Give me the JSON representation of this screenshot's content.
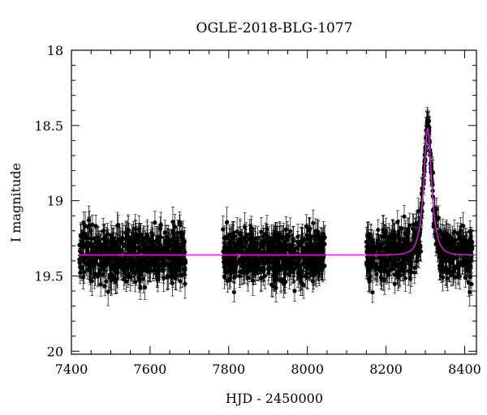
{
  "chart_data": {
    "type": "scatter",
    "title": "OGLE-2018-BLG-1077",
    "xlabel": "HJD - 2450000",
    "ylabel": "I magnitude",
    "xlim": [
      7400,
      8430
    ],
    "ylim": [
      18.0,
      20.02
    ],
    "y_inverted": true,
    "grid": false,
    "x_ticks": [
      7400,
      7600,
      7800,
      8000,
      8200,
      8400
    ],
    "x_tick_labels": [
      "7400",
      "7600",
      "7800",
      "8000",
      "8200",
      "8400"
    ],
    "y_ticks": [
      18,
      18.5,
      19,
      19.5,
      20
    ],
    "y_tick_labels": [
      "18",
      "18.5",
      "19",
      "19.5",
      "20"
    ],
    "observing_seasons": [
      {
        "start": 7420,
        "end": 7690
      },
      {
        "start": 7785,
        "end": 8045
      },
      {
        "start": 8150,
        "end": 8420
      }
    ],
    "baseline_magnitude": 19.36,
    "peak_time": 8306,
    "peak_magnitude": 18.52,
    "observed_peak_magnitude": 18.41,
    "scatter_range": [
      19.05,
      19.75
    ],
    "typical_error": 0.08,
    "series": [
      {
        "type": "scatter",
        "color": "#000000"
      },
      {
        "type": "line",
        "color": "#e01de0"
      }
    ]
  }
}
